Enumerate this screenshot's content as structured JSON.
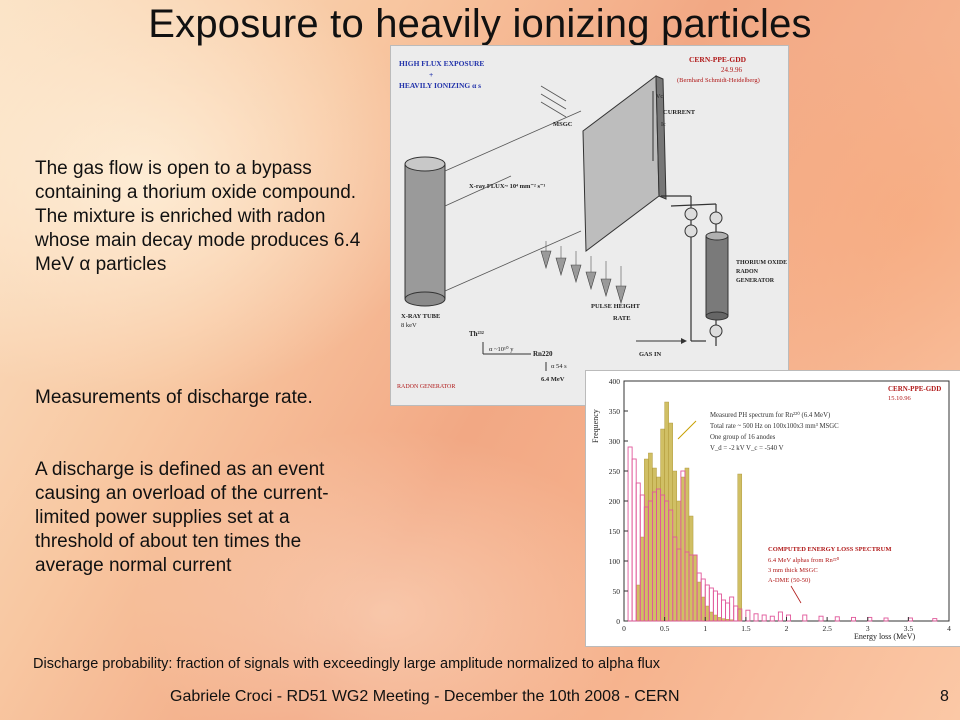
{
  "slide": {
    "title": "Exposure to heavily ionizing particles",
    "paragraph1": "The gas flow is open to a bypass containing a thorium oxide compound. The mixture is enriched with radon whose main decay mode produces 6.4 MeV α particles",
    "paragraph2": "Measurements of discharge rate.",
    "paragraph3": "A discharge is defined as an event causing an overload of the current-limited power supplies set at a threshold of about ten times the average normal current",
    "caption": "Discharge probability: fraction of signals with exceedingly large amplitude normalized to alpha flux",
    "footer": "Gabriele Croci - RD51 WG2 Meeting - December the 10th  2008 - CERN",
    "page_number": "8"
  },
  "diagram": {
    "header_left_1": "HIGH FLUX EXPOSURE",
    "header_plus": "+",
    "header_left_2": "HEAVILY IONIZING α s",
    "header_right_1": "CERN-PPE-GDD",
    "header_right_2": "24.9.96",
    "header_right_3": "(Bernhard Schmidt-Heidelberg)",
    "label_msgc": "MSGC",
    "label_vc": "Vc",
    "label_current": "CURRENT",
    "label_ic": "Ic",
    "label_xray_flux": "X-ray FLUX~ 10⁴ mm⁻² s⁻¹",
    "label_xray_tube_1": "X-RAY TUBE",
    "label_xray_tube_2": "8 keV",
    "label_thorium_1": "THORIUM OXIDE",
    "label_thorium_2": "RADON",
    "label_thorium_3": "GENERATOR",
    "label_pulse_1": "PULSE HEIGHT",
    "label_pulse_2": "RATE",
    "label_th": "Th²³²",
    "label_alpha_th": "α ~10¹⁰ y",
    "label_rn": "Rn220",
    "label_alpha_rn": "α 54 s",
    "label_mev": "6.4 MeV",
    "label_gas_in": "GAS IN",
    "label_radon_gen": "RADON GENERATOR"
  },
  "chart_data": {
    "type": "bar",
    "ylabel": "Frequency",
    "xlabel": "Energy loss (MeV)",
    "xlim": [
      0,
      4
    ],
    "ylim": [
      0,
      400
    ],
    "x_ticks": [
      "0",
      "0.5",
      "1",
      "1.5",
      "2",
      "2.5",
      "3",
      "3.5",
      "4"
    ],
    "y_ticks": [
      "0",
      "50",
      "100",
      "150",
      "200",
      "250",
      "300",
      "350",
      "400"
    ],
    "annotation_top_right_1": "CERN-PPE-GDD",
    "annotation_top_right_2": "15.10.96",
    "measured_label_1": "Measured PH spectrum for Rn²²⁰ (6.4 MeV)",
    "measured_label_2": "Total rate ~ 500 Hz  on 100x100x3 mm³ MSGC",
    "measured_label_3": "One group of 16 anodes",
    "measured_label_4": "V_d = -2 kV   V_c = -540 V",
    "computed_label_1": "COMPUTED ENERGY LOSS SPECTRUM",
    "computed_label_2": "6.4 MeV alphas from Rn²²⁰",
    "computed_label_3": "3 mm thick MSGC",
    "computed_label_4": "A-DME (50-50)",
    "bin_width": 0.05,
    "series": [
      {
        "color": "#c8b449",
        "x": [
          0.15,
          0.2,
          0.25,
          0.3,
          0.35,
          0.4,
          0.45,
          0.5,
          0.55,
          0.6,
          0.65,
          0.7,
          0.75,
          0.8,
          0.85,
          0.9,
          0.95,
          1.0,
          1.05,
          1.1,
          1.15,
          1.2,
          1.25,
          1.3,
          1.35,
          1.4,
          1.45
        ],
        "values": [
          60,
          140,
          270,
          280,
          255,
          240,
          320,
          365,
          330,
          250,
          200,
          240,
          255,
          175,
          110,
          65,
          40,
          25,
          15,
          10,
          6,
          4,
          3,
          2,
          0,
          245,
          0
        ]
      },
      {
        "color": "#e0579a",
        "x": [
          0.05,
          0.1,
          0.15,
          0.2,
          0.25,
          0.3,
          0.35,
          0.4,
          0.45,
          0.5,
          0.55,
          0.6,
          0.65,
          0.7,
          0.75,
          0.8,
          0.85,
          0.9,
          0.95,
          1.0,
          1.05,
          1.1,
          1.15,
          1.2,
          1.25,
          1.3,
          1.35,
          1.4,
          1.5,
          1.6,
          1.7,
          1.8,
          1.9,
          2.0,
          2.2,
          2.4,
          2.6,
          2.8,
          3.0,
          3.2,
          3.5,
          3.8
        ],
        "values": [
          290,
          270,
          230,
          210,
          190,
          200,
          215,
          220,
          210,
          200,
          185,
          140,
          120,
          250,
          115,
          110,
          110,
          80,
          70,
          60,
          55,
          50,
          45,
          35,
          30,
          40,
          25,
          20,
          18,
          12,
          10,
          8,
          15,
          10,
          10,
          8,
          7,
          6,
          6,
          5,
          5,
          4
        ]
      }
    ]
  }
}
